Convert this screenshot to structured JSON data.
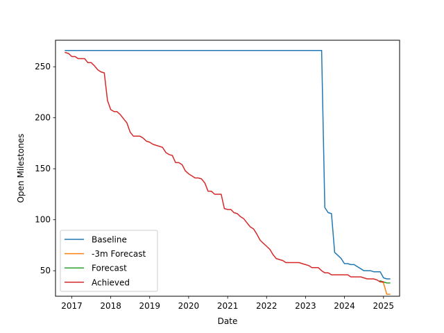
{
  "chart_data": {
    "type": "line",
    "xlabel": "Date",
    "ylabel": "Open Milestones",
    "x_ticks": [
      "2017",
      "2018",
      "2019",
      "2020",
      "2021",
      "2022",
      "2023",
      "2024",
      "2025"
    ],
    "y_ticks": [
      50,
      100,
      150,
      200,
      250
    ],
    "xlim": [
      "2016-08-01",
      "2025-06-01"
    ],
    "ylim": [
      25,
      276
    ],
    "grid": false,
    "legend_position": "lower-left",
    "series": [
      {
        "name": "Baseline",
        "color": "#1f77b4",
        "points": [
          [
            "2016-11-01",
            266
          ],
          [
            "2023-06-01",
            266
          ],
          [
            "2023-07-01",
            112
          ],
          [
            "2023-08-01",
            107
          ],
          [
            "2023-09-01",
            106
          ],
          [
            "2023-10-01",
            68
          ],
          [
            "2023-11-01",
            65
          ],
          [
            "2023-12-01",
            62
          ],
          [
            "2024-01-01",
            57
          ],
          [
            "2024-02-01",
            57
          ],
          [
            "2024-03-01",
            56
          ],
          [
            "2024-04-01",
            56
          ],
          [
            "2024-05-01",
            54
          ],
          [
            "2024-06-01",
            52
          ],
          [
            "2024-07-01",
            50
          ],
          [
            "2024-08-01",
            50
          ],
          [
            "2024-09-01",
            50
          ],
          [
            "2024-10-01",
            49
          ],
          [
            "2024-11-01",
            49
          ],
          [
            "2024-12-01",
            49
          ],
          [
            "2025-01-01",
            43
          ],
          [
            "2025-02-01",
            42
          ],
          [
            "2025-03-01",
            42
          ]
        ]
      },
      {
        "name": "-3m Forecast",
        "color": "#ff7f0e",
        "points": [
          [
            "2024-12-01",
            40
          ],
          [
            "2025-01-01",
            38
          ],
          [
            "2025-02-01",
            27
          ],
          [
            "2025-03-01",
            27
          ]
        ]
      },
      {
        "name": "Forecast",
        "color": "#2ca02c",
        "points": [
          [
            "2024-12-01",
            40
          ],
          [
            "2025-01-01",
            39
          ],
          [
            "2025-02-01",
            38
          ],
          [
            "2025-03-01",
            38
          ]
        ]
      },
      {
        "name": "Achieved",
        "color": "#d62728",
        "points": [
          [
            "2016-11-01",
            264
          ],
          [
            "2016-12-01",
            263
          ],
          [
            "2017-01-01",
            260
          ],
          [
            "2017-02-01",
            260
          ],
          [
            "2017-03-01",
            258
          ],
          [
            "2017-04-01",
            258
          ],
          [
            "2017-05-01",
            258
          ],
          [
            "2017-06-01",
            254
          ],
          [
            "2017-07-01",
            254
          ],
          [
            "2017-08-01",
            251
          ],
          [
            "2017-09-01",
            247
          ],
          [
            "2017-10-01",
            245
          ],
          [
            "2017-11-01",
            244
          ],
          [
            "2017-12-01",
            217
          ],
          [
            "2018-01-01",
            208
          ],
          [
            "2018-02-01",
            206
          ],
          [
            "2018-03-01",
            206
          ],
          [
            "2018-04-01",
            203
          ],
          [
            "2018-05-01",
            199
          ],
          [
            "2018-06-01",
            195
          ],
          [
            "2018-07-01",
            186
          ],
          [
            "2018-08-01",
            182
          ],
          [
            "2018-09-01",
            182
          ],
          [
            "2018-10-01",
            182
          ],
          [
            "2018-11-01",
            180
          ],
          [
            "2018-12-01",
            177
          ],
          [
            "2019-01-01",
            176
          ],
          [
            "2019-02-01",
            174
          ],
          [
            "2019-03-01",
            173
          ],
          [
            "2019-04-01",
            172
          ],
          [
            "2019-05-01",
            171
          ],
          [
            "2019-06-01",
            166
          ],
          [
            "2019-07-01",
            164
          ],
          [
            "2019-08-01",
            163
          ],
          [
            "2019-09-01",
            156
          ],
          [
            "2019-10-01",
            156
          ],
          [
            "2019-11-01",
            154
          ],
          [
            "2019-12-01",
            148
          ],
          [
            "2020-01-01",
            145
          ],
          [
            "2020-02-01",
            143
          ],
          [
            "2020-03-01",
            141
          ],
          [
            "2020-04-01",
            141
          ],
          [
            "2020-05-01",
            140
          ],
          [
            "2020-06-01",
            136
          ],
          [
            "2020-07-01",
            128
          ],
          [
            "2020-08-01",
            128
          ],
          [
            "2020-09-01",
            125
          ],
          [
            "2020-10-01",
            125
          ],
          [
            "2020-11-01",
            125
          ],
          [
            "2020-12-01",
            111
          ],
          [
            "2021-01-01",
            110
          ],
          [
            "2021-02-01",
            110
          ],
          [
            "2021-03-01",
            107
          ],
          [
            "2021-04-01",
            106
          ],
          [
            "2021-05-01",
            103
          ],
          [
            "2021-06-01",
            101
          ],
          [
            "2021-07-01",
            97
          ],
          [
            "2021-08-01",
            93
          ],
          [
            "2021-09-01",
            91
          ],
          [
            "2021-10-01",
            86
          ],
          [
            "2021-11-01",
            80
          ],
          [
            "2021-12-01",
            77
          ],
          [
            "2022-01-01",
            74
          ],
          [
            "2022-02-01",
            71
          ],
          [
            "2022-03-01",
            66
          ],
          [
            "2022-04-01",
            62
          ],
          [
            "2022-05-01",
            61
          ],
          [
            "2022-06-01",
            60
          ],
          [
            "2022-07-01",
            58
          ],
          [
            "2022-08-01",
            58
          ],
          [
            "2022-09-01",
            58
          ],
          [
            "2022-10-01",
            58
          ],
          [
            "2022-11-01",
            58
          ],
          [
            "2022-12-01",
            57
          ],
          [
            "2023-01-01",
            56
          ],
          [
            "2023-02-01",
            55
          ],
          [
            "2023-03-01",
            53
          ],
          [
            "2023-04-01",
            53
          ],
          [
            "2023-05-01",
            53
          ],
          [
            "2023-06-01",
            50
          ],
          [
            "2023-07-01",
            48
          ],
          [
            "2023-08-01",
            48
          ],
          [
            "2023-09-01",
            46
          ],
          [
            "2023-10-01",
            46
          ],
          [
            "2023-11-01",
            46
          ],
          [
            "2023-12-01",
            46
          ],
          [
            "2024-01-01",
            46
          ],
          [
            "2024-02-01",
            46
          ],
          [
            "2024-03-01",
            44
          ],
          [
            "2024-04-01",
            44
          ],
          [
            "2024-05-01",
            44
          ],
          [
            "2024-06-01",
            44
          ],
          [
            "2024-07-01",
            43
          ],
          [
            "2024-08-01",
            42
          ],
          [
            "2024-09-01",
            42
          ],
          [
            "2024-10-01",
            42
          ],
          [
            "2024-11-01",
            41
          ],
          [
            "2024-12-01",
            39
          ],
          [
            "2025-01-01",
            39
          ]
        ]
      }
    ]
  }
}
